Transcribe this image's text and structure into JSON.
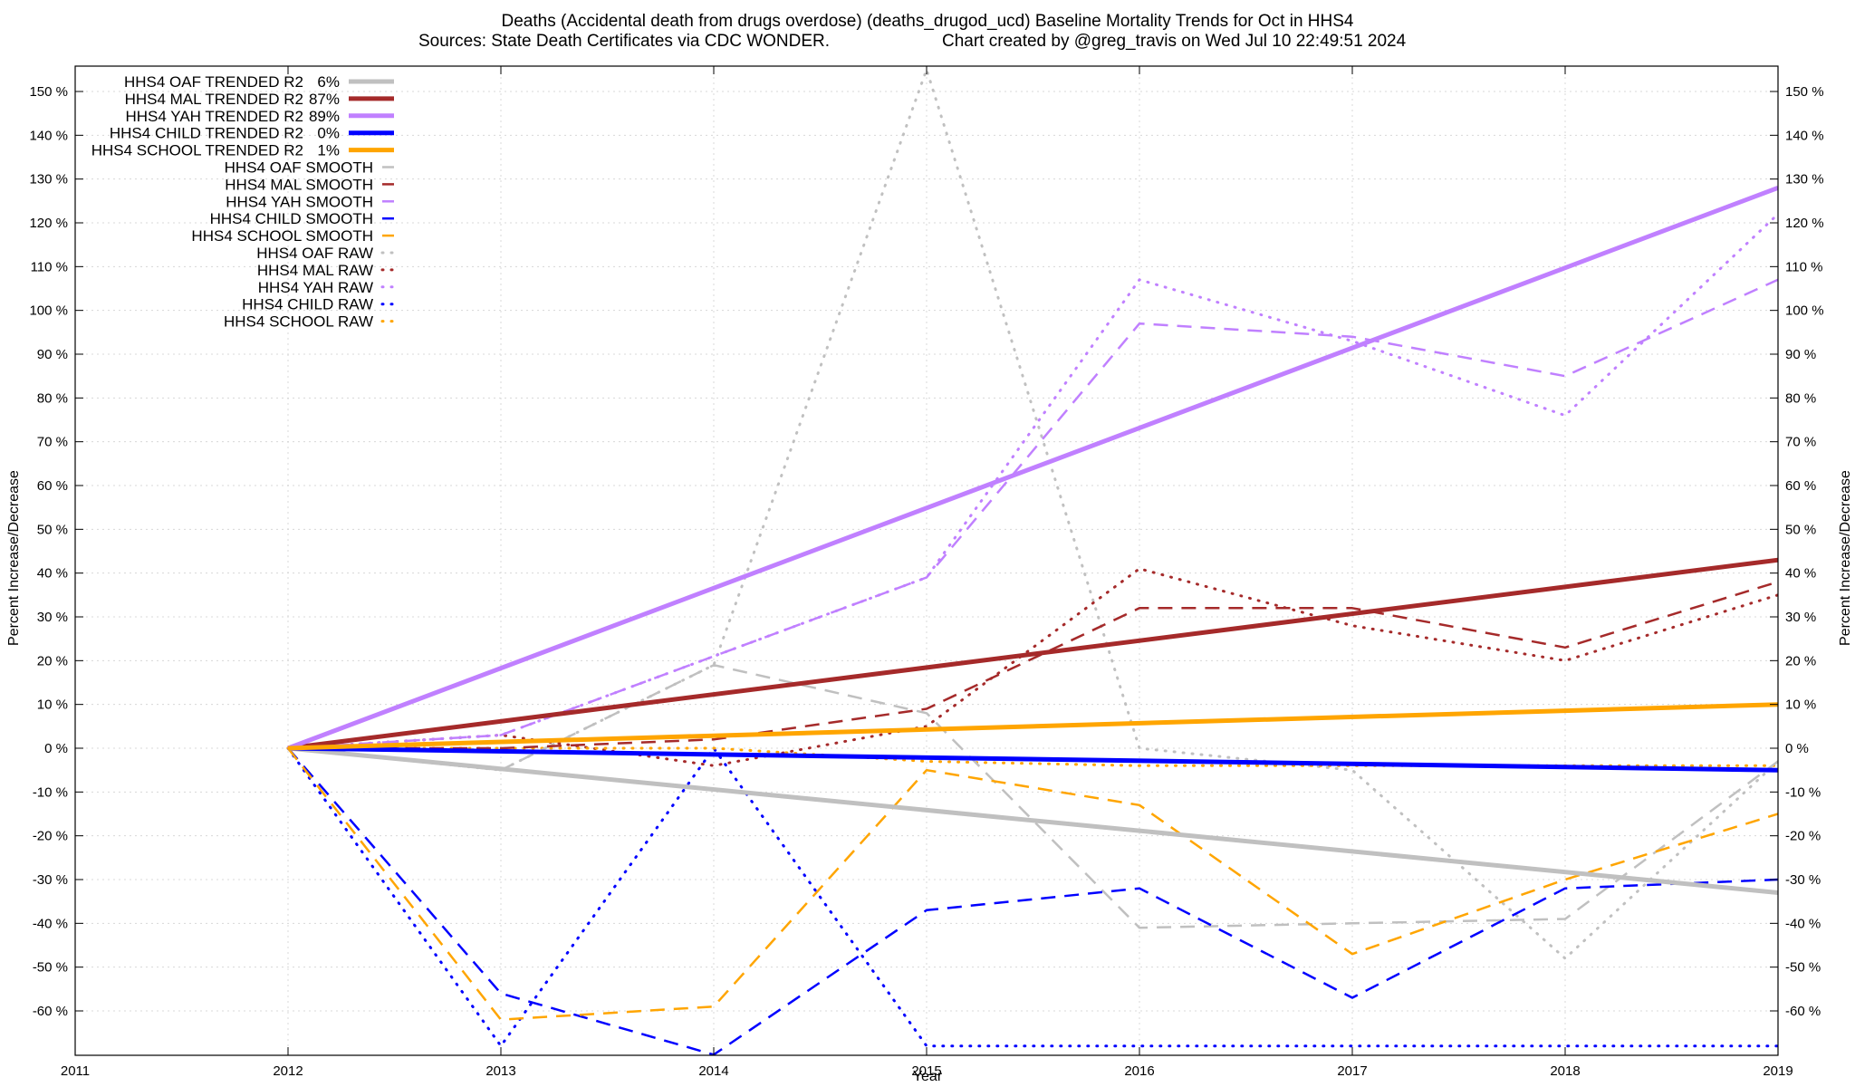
{
  "header": {
    "title_line1": "Deaths (Accidental death from drugs overdose) (deaths_drugod_ucd)  Baseline Mortality Trends for Oct in HHS4",
    "title_line2_left": "Sources: State Death Certificates via CDC WONDER.",
    "title_line2_right": "Chart created by @greg_travis on Wed Jul 10 22:49:51 2024"
  },
  "chart_data": {
    "type": "line",
    "xlabel": "Year",
    "ylabel": "Percent Increase/Decrease",
    "ylabel_right": "Percent Increase/Decrease",
    "xlim": [
      2011,
      2019
    ],
    "ylim": [
      -70,
      155
    ],
    "x_ticks": [
      "2011",
      "2012",
      "2013",
      "2014",
      "2015",
      "2016",
      "2017",
      "2018",
      "2019"
    ],
    "y_ticks": [
      {
        "v": 150,
        "label": "150 %"
      },
      {
        "v": 140,
        "label": "140 %"
      },
      {
        "v": 130,
        "label": "130 %"
      },
      {
        "v": 120,
        "label": "120 %"
      },
      {
        "v": 110,
        "label": "110 %"
      },
      {
        "v": 100,
        "label": "100 %"
      },
      {
        "v": 90,
        "label": "90 %"
      },
      {
        "v": 80,
        "label": "80 %"
      },
      {
        "v": 70,
        "label": "70 %"
      },
      {
        "v": 60,
        "label": "60 %"
      },
      {
        "v": 50,
        "label": "50 %"
      },
      {
        "v": 40,
        "label": "40 %"
      },
      {
        "v": 30,
        "label": "30 %"
      },
      {
        "v": 20,
        "label": "20 %"
      },
      {
        "v": 10,
        "label": "10 %"
      },
      {
        "v": 0,
        "label": "0 %"
      },
      {
        "v": -10,
        "label": "-10 %"
      },
      {
        "v": -20,
        "label": "-20 %"
      },
      {
        "v": -30,
        "label": "-30 %"
      },
      {
        "v": -40,
        "label": "-40 %"
      },
      {
        "v": -50,
        "label": "-50 %"
      },
      {
        "v": -60,
        "label": "-60 %"
      }
    ],
    "grid": true,
    "legend_position": "top-left",
    "series": [
      {
        "name": "HHS4 OAF TRENDED R2",
        "stat": "6%",
        "color": "#c0c0c0",
        "style": "solid",
        "x": [
          2012,
          2019
        ],
        "values": [
          0,
          -33
        ]
      },
      {
        "name": "HHS4 MAL TRENDED R2",
        "stat": "87%",
        "color": "#a52a2a",
        "style": "solid",
        "x": [
          2012,
          2019
        ],
        "values": [
          0,
          43
        ]
      },
      {
        "name": "HHS4 YAH TRENDED R2",
        "stat": "89%",
        "color": "#c080ff",
        "style": "solid",
        "x": [
          2012,
          2019
        ],
        "values": [
          0,
          128
        ]
      },
      {
        "name": "HHS4 CHILD TRENDED R2",
        "stat": "0%",
        "color": "#0000ff",
        "style": "solid",
        "x": [
          2012,
          2019
        ],
        "values": [
          0,
          -5
        ]
      },
      {
        "name": "HHS4 SCHOOL TRENDED R2",
        "stat": "1%",
        "color": "#ffa500",
        "style": "solid",
        "x": [
          2012,
          2019
        ],
        "values": [
          0,
          10
        ]
      },
      {
        "name": "HHS4 OAF SMOOTH",
        "stat": "",
        "color": "#c0c0c0",
        "style": "dash",
        "x": [
          2012,
          2013,
          2014,
          2015,
          2016,
          2017,
          2018,
          2019
        ],
        "values": [
          0,
          -5,
          19,
          8,
          -41,
          -40,
          -39,
          -3
        ]
      },
      {
        "name": "HHS4 MAL SMOOTH",
        "stat": "",
        "color": "#a52a2a",
        "style": "dash",
        "x": [
          2012,
          2013,
          2014,
          2015,
          2016,
          2017,
          2018,
          2019
        ],
        "values": [
          0,
          0,
          2,
          9,
          32,
          32,
          23,
          38
        ]
      },
      {
        "name": "HHS4 YAH SMOOTH",
        "stat": "",
        "color": "#c080ff",
        "style": "dash",
        "x": [
          2012,
          2013,
          2014,
          2015,
          2016,
          2017,
          2018,
          2019
        ],
        "values": [
          0,
          3,
          21,
          39,
          97,
          94,
          85,
          107
        ]
      },
      {
        "name": "HHS4 CHILD SMOOTH",
        "stat": "",
        "color": "#0000ff",
        "style": "dash",
        "x": [
          2012,
          2013,
          2014,
          2015,
          2016,
          2017,
          2018,
          2019
        ],
        "values": [
          0,
          -56,
          -70,
          -37,
          -32,
          -57,
          -32,
          -30
        ]
      },
      {
        "name": "HHS4 SCHOOL SMOOTH",
        "stat": "",
        "color": "#ffa500",
        "style": "dash",
        "x": [
          2012,
          2013,
          2014,
          2015,
          2016,
          2017,
          2018,
          2019
        ],
        "values": [
          0,
          -62,
          -59,
          -5,
          -13,
          -47,
          -30,
          -15
        ]
      },
      {
        "name": "HHS4 OAF RAW",
        "stat": "",
        "color": "#c0c0c0",
        "style": "dot",
        "x": [
          2012,
          2013,
          2014,
          2015,
          2016,
          2017,
          2018,
          2019
        ],
        "values": [
          0,
          -5,
          19,
          155,
          0,
          -5,
          -48,
          -3
        ]
      },
      {
        "name": "HHS4 MAL RAW",
        "stat": "",
        "color": "#a52a2a",
        "style": "dot",
        "x": [
          2012,
          2013,
          2014,
          2015,
          2016,
          2017,
          2018,
          2019
        ],
        "values": [
          0,
          3,
          -4,
          5,
          41,
          28,
          20,
          35
        ]
      },
      {
        "name": "HHS4 YAH RAW",
        "stat": "",
        "color": "#c080ff",
        "style": "dot",
        "x": [
          2012,
          2013,
          2014,
          2015,
          2016,
          2017,
          2018,
          2019
        ],
        "values": [
          0,
          3,
          21,
          39,
          107,
          93,
          76,
          122
        ]
      },
      {
        "name": "HHS4 CHILD RAW",
        "stat": "",
        "color": "#0000ff",
        "style": "dot",
        "x": [
          2012,
          2013,
          2014,
          2015,
          2016,
          2017,
          2018,
          2019
        ],
        "values": [
          0,
          -68,
          0,
          -68,
          -68,
          -68,
          -68,
          -68
        ]
      },
      {
        "name": "HHS4 SCHOOL RAW",
        "stat": "",
        "color": "#ffa500",
        "style": "dot",
        "x": [
          2012,
          2013,
          2014,
          2015,
          2016,
          2017,
          2018,
          2019
        ],
        "values": [
          0,
          0,
          0,
          -3,
          -4,
          -4,
          -4,
          -4
        ]
      }
    ]
  }
}
